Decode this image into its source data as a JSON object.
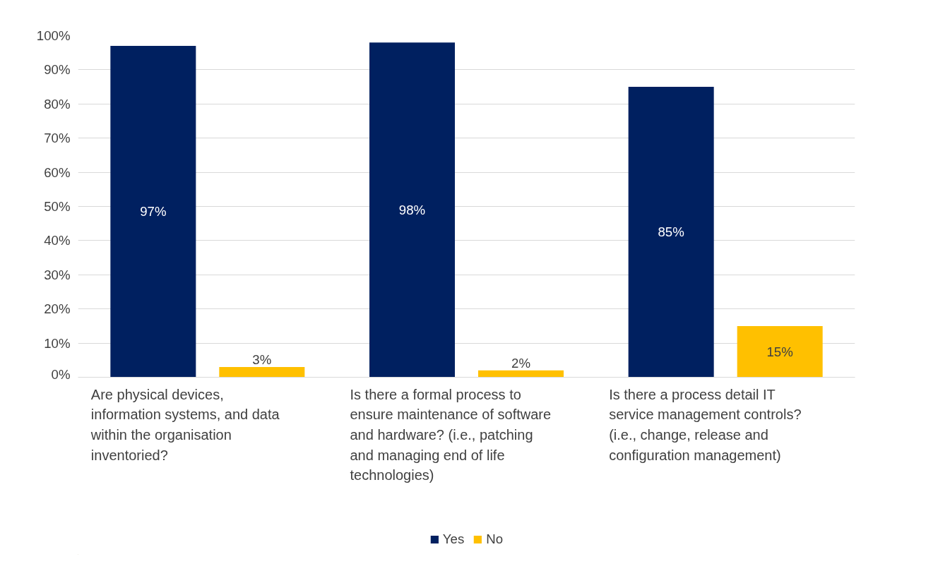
{
  "chart_data": {
    "type": "bar",
    "categories": [
      "Are physical devices, information systems, and data within the organisation inventoried?",
      "Is there a formal process to ensure maintenance of software and hardware? (i.e., patching and managing end of life technologies)",
      "Is there a process detail IT service management controls? (i.e., change, release and configuration management)"
    ],
    "series": [
      {
        "name": "Yes",
        "color": "#002060",
        "values": [
          97,
          98,
          85
        ]
      },
      {
        "name": "No",
        "color": "#ffc000",
        "values": [
          3,
          2,
          15
        ]
      }
    ],
    "ylim": [
      0,
      100
    ],
    "yticks": [
      {
        "value": 0,
        "label": "0%"
      },
      {
        "value": 10,
        "label": "10%"
      },
      {
        "value": 20,
        "label": "20%"
      },
      {
        "value": 30,
        "label": "30%"
      },
      {
        "value": 40,
        "label": "40%"
      },
      {
        "value": 50,
        "label": "50%"
      },
      {
        "value": 60,
        "label": "60%"
      },
      {
        "value": 70,
        "label": "70%"
      },
      {
        "value": 80,
        "label": "80%"
      },
      {
        "value": 90,
        "label": "90%"
      },
      {
        "value": 100,
        "label": "100%"
      }
    ],
    "grid": "y",
    "legend": "bottom",
    "value_labels": [
      [
        "97%",
        "98%",
        "85%"
      ],
      [
        "3%",
        "2%",
        "15%"
      ]
    ]
  }
}
